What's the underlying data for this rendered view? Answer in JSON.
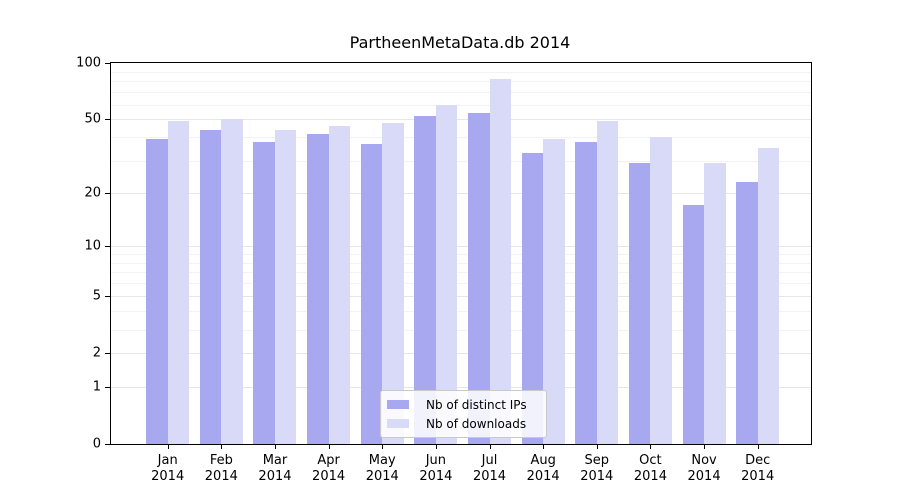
{
  "chart_data": {
    "type": "bar",
    "title": "PartheenMetaData.db 2014",
    "categories": [
      "Jan",
      "Feb",
      "Mar",
      "Apr",
      "May",
      "Jun",
      "Jul",
      "Aug",
      "Sep",
      "Oct",
      "Nov",
      "Dec"
    ],
    "category_year": "2014",
    "series": [
      {
        "name": "Nb of distinct IPs",
        "color": "#a8a8f0",
        "values": [
          39,
          44,
          38,
          42,
          37,
          52,
          54,
          33,
          38,
          29,
          17,
          23
        ]
      },
      {
        "name": "Nb of downloads",
        "color": "#d9d9f8",
        "values": [
          49,
          50,
          44,
          46,
          48,
          60,
          82,
          39,
          49,
          40,
          29,
          35
        ]
      }
    ],
    "y_axis": {
      "scale": "log1p",
      "ylim": [
        0,
        100
      ],
      "major_ticks": [
        0,
        1,
        2,
        5,
        10,
        20,
        50,
        100
      ],
      "minor_gridlines": [
        3,
        4,
        6,
        7,
        8,
        9,
        30,
        40,
        60,
        70,
        80,
        90
      ]
    },
    "legend": {
      "position": "bottom-center",
      "entries": [
        "Nb of distinct IPs",
        "Nb of downloads"
      ]
    },
    "grid": "horizontal",
    "colors": {
      "major_grid": "#e6e6e6",
      "minor_grid": "#f3f3f3",
      "spine": "#000000",
      "text": "#000000",
      "legend_bg": "rgba(255,255,255,0.85)",
      "legend_border": "#c9c9c9"
    }
  }
}
